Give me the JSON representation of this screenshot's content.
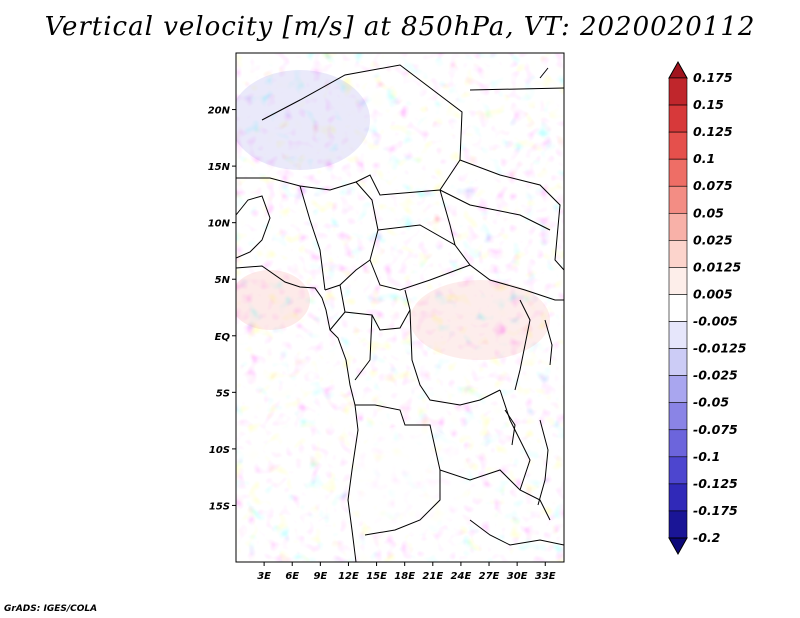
{
  "title": "Vertical velocity [m/s] at 850hPa, VT: 2020020112",
  "credit": "GrADS: IGES/COLA",
  "map": {
    "lon_range": [
      0,
      35
    ],
    "lat_range": [
      -20,
      25
    ],
    "lat_labels": [
      {
        "lat": 20,
        "text": "20N"
      },
      {
        "lat": 15,
        "text": "15N"
      },
      {
        "lat": 10,
        "text": "10N"
      },
      {
        "lat": 5,
        "text": "5N"
      },
      {
        "lat": 0,
        "text": "EQ"
      },
      {
        "lat": -5,
        "text": "5S"
      },
      {
        "lat": -10,
        "text": "10S"
      },
      {
        "lat": -15,
        "text": "15S"
      }
    ],
    "lon_labels": [
      {
        "lon": 3,
        "text": "3E"
      },
      {
        "lon": 6,
        "text": "6E"
      },
      {
        "lon": 9,
        "text": "9E"
      },
      {
        "lon": 12,
        "text": "12E"
      },
      {
        "lon": 15,
        "text": "15E"
      },
      {
        "lon": 18,
        "text": "18E"
      },
      {
        "lon": 21,
        "text": "21E"
      },
      {
        "lon": 24,
        "text": "24E"
      },
      {
        "lon": 27,
        "text": "27E"
      },
      {
        "lon": 30,
        "text": "30E"
      },
      {
        "lon": 33,
        "text": "33E"
      }
    ]
  },
  "colorbar": {
    "levels": [
      "0.175",
      "0.15",
      "0.125",
      "0.1",
      "0.075",
      "0.05",
      "0.025",
      "0.0125",
      "0.005",
      "-0.005",
      "-0.0125",
      "-0.025",
      "-0.05",
      "-0.075",
      "-0.1",
      "-0.125",
      "-0.175",
      "-0.2"
    ],
    "colors": [
      "#a0141e",
      "#c0262c",
      "#d7393a",
      "#e5504c",
      "#ee6e66",
      "#f38d84",
      "#f8b1a8",
      "#fcd4cc",
      "#fdeeea",
      "#ffffff",
      "#e6e6fb",
      "#ccccf6",
      "#a9a6ef",
      "#8a84e6",
      "#6c65dc",
      "#4d46cf",
      "#3029b8",
      "#1a1596",
      "#0c0878"
    ]
  }
}
